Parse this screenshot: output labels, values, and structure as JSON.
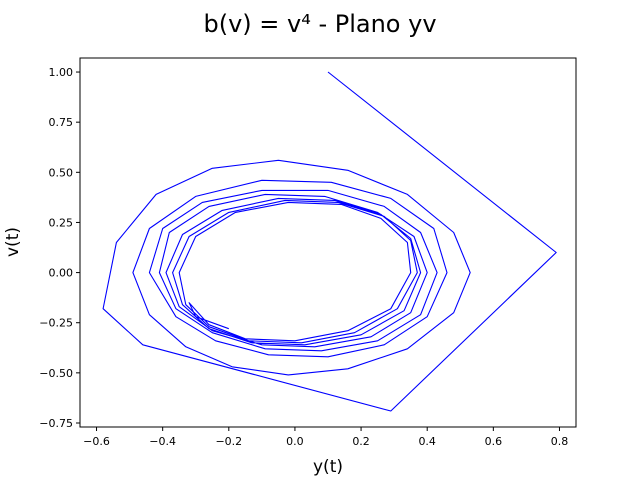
{
  "chart_data": {
    "type": "line",
    "title": "b(v) = v⁴ - Plano yv",
    "xlabel": "y(t)",
    "ylabel": "v(t)",
    "xlim": [
      -0.65,
      0.85
    ],
    "ylim": [
      -0.77,
      1.07
    ],
    "xticks": [
      -0.6,
      -0.4,
      -0.2,
      0.0,
      0.2,
      0.4,
      0.6,
      0.8
    ],
    "xtick_labels": [
      "−0.6",
      "−0.4",
      "−0.2",
      "0.0",
      "0.2",
      "0.4",
      "0.6",
      "0.8"
    ],
    "yticks": [
      -0.75,
      -0.5,
      -0.25,
      0.0,
      0.25,
      0.5,
      0.75,
      1.0
    ],
    "ytick_labels": [
      "−0.75",
      "−0.50",
      "−0.25",
      "0.00",
      "0.25",
      "0.50",
      "0.75",
      "1.00"
    ],
    "grid": false,
    "series": [
      {
        "color": "#0000ff",
        "x": [
          0.1,
          0.79,
          0.29,
          -0.46,
          -0.58,
          -0.54,
          -0.42,
          -0.25,
          -0.05,
          0.16,
          0.34,
          0.48,
          0.53,
          0.48,
          0.34,
          0.16,
          -0.02,
          -0.19,
          -0.33,
          -0.44,
          -0.49,
          -0.44,
          -0.3,
          -0.1,
          0.11,
          0.29,
          0.42,
          0.46,
          0.4,
          0.27,
          0.1,
          -0.08,
          -0.24,
          -0.36,
          -0.44,
          -0.4,
          -0.28,
          -0.1,
          0.1,
          0.27,
          0.38,
          0.43,
          0.38,
          0.25,
          0.08,
          -0.09,
          -0.25,
          -0.36,
          -0.41,
          -0.38,
          -0.26,
          -0.09,
          0.09,
          0.25,
          0.36,
          0.4,
          0.35,
          0.23,
          0.06,
          -0.1,
          -0.25,
          -0.35,
          -0.39,
          -0.34,
          -0.22,
          -0.05,
          0.12,
          0.26,
          0.35,
          0.38,
          0.33,
          0.2,
          0.03,
          -0.13,
          -0.26,
          -0.34,
          -0.37,
          -0.32,
          -0.2,
          -0.03,
          0.13,
          0.27,
          0.35,
          0.37,
          0.31,
          0.18,
          0.02,
          -0.14,
          -0.26,
          -0.33,
          -0.35,
          -0.3,
          -0.18,
          -0.02,
          0.14,
          0.26,
          0.34,
          0.35,
          0.29,
          0.16,
          0.0,
          -0.15,
          -0.26,
          -0.32,
          -0.3,
          -0.2
        ],
        "y": [
          1.0,
          0.1,
          -0.69,
          -0.36,
          -0.18,
          0.15,
          0.39,
          0.52,
          0.56,
          0.51,
          0.39,
          0.2,
          0.0,
          -0.2,
          -0.38,
          -0.48,
          -0.51,
          -0.47,
          -0.37,
          -0.21,
          0.0,
          0.22,
          0.38,
          0.46,
          0.45,
          0.37,
          0.22,
          0.0,
          -0.22,
          -0.36,
          -0.42,
          -0.41,
          -0.34,
          -0.22,
          0.0,
          0.22,
          0.35,
          0.41,
          0.41,
          0.33,
          0.2,
          0.0,
          -0.21,
          -0.34,
          -0.39,
          -0.38,
          -0.3,
          -0.18,
          0.0,
          0.2,
          0.33,
          0.39,
          0.38,
          0.3,
          0.18,
          0.0,
          -0.2,
          -0.32,
          -0.37,
          -0.36,
          -0.29,
          -0.17,
          0.0,
          0.19,
          0.31,
          0.37,
          0.36,
          0.29,
          0.17,
          0.0,
          -0.19,
          -0.31,
          -0.36,
          -0.35,
          -0.28,
          -0.16,
          0.0,
          0.18,
          0.3,
          0.36,
          0.35,
          0.28,
          0.16,
          0.0,
          -0.18,
          -0.3,
          -0.35,
          -0.34,
          -0.27,
          -0.16,
          0.0,
          0.18,
          0.3,
          0.35,
          0.34,
          0.27,
          0.15,
          0.0,
          -0.18,
          -0.29,
          -0.34,
          -0.33,
          -0.26,
          -0.15,
          -0.22,
          -0.28
        ]
      }
    ]
  }
}
